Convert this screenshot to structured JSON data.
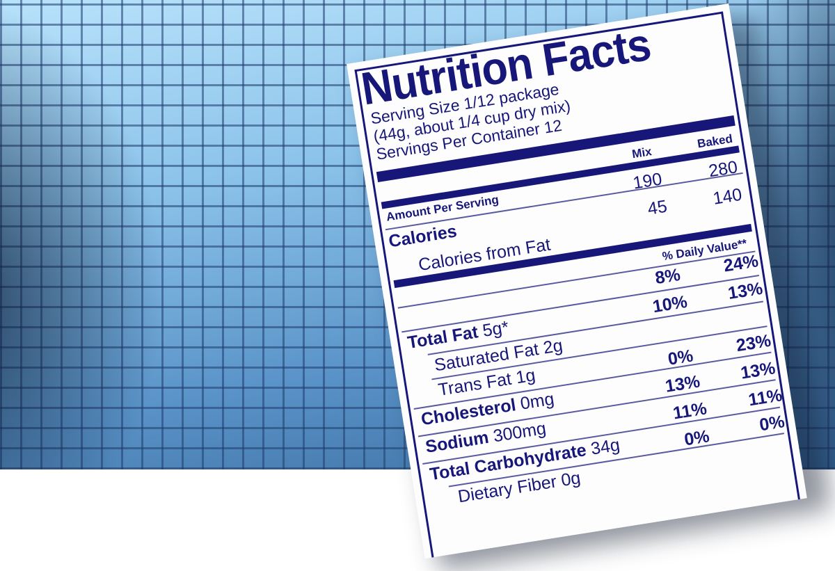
{
  "label": {
    "title": "Nutrition Facts",
    "serving_size": "Serving Size 1/12 package",
    "serving_detail": "(44g, about 1/4 cup dry mix)",
    "servings_per_container": "Servings Per Container 12",
    "col_mix": "Mix",
    "col_baked": "Baked",
    "amount_per_serving": "Amount Per Serving",
    "calories": {
      "label": "Calories",
      "mix": "190",
      "baked": "280"
    },
    "calories_from_fat": {
      "label": "Calories from Fat",
      "mix": "45",
      "baked": "140"
    },
    "daily_value_header": "% Daily Value**",
    "rows": [
      {
        "name": "Total Fat",
        "amount": "5g*",
        "mix": "8%",
        "baked": "24%"
      },
      {
        "name": "Saturated Fat",
        "amount": "2g",
        "mix": "10%",
        "baked": "13%"
      },
      {
        "name": "Trans Fat",
        "amount": "1g",
        "mix": "",
        "baked": ""
      },
      {
        "name": "Cholesterol",
        "amount": "0mg",
        "mix": "0%",
        "baked": "23%"
      },
      {
        "name": "Sodium",
        "amount": "300mg",
        "mix": "13%",
        "baked": "13%"
      },
      {
        "name": "Total Carbohydrate",
        "amount": "34g",
        "mix": "11%",
        "baked": "11%"
      },
      {
        "name": "Dietary Fiber",
        "amount": "0g",
        "mix": "0%",
        "baked": "0%"
      }
    ]
  },
  "colors": {
    "ink": "#17177a",
    "background_blue": "#8cc3ea"
  }
}
